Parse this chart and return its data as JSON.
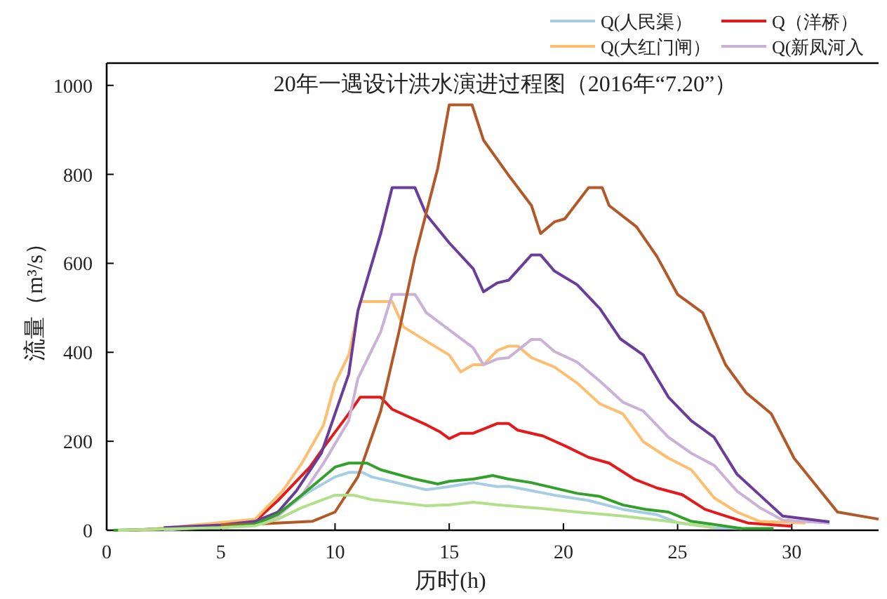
{
  "chart_data": {
    "type": "line",
    "title": "20年一遇设计洪水演进过程图（2016年“7.20”）",
    "xlabel": "历时(h)",
    "ylabel": "流量（m³/s）",
    "xlim": [
      0,
      33.8
    ],
    "ylim": [
      0,
      1050
    ],
    "xticks": [
      0,
      5,
      10,
      15,
      20,
      25,
      30
    ],
    "yticks": [
      0,
      200,
      400,
      600,
      800,
      1000
    ],
    "legend": "top right",
    "series": [
      {
        "name": "Q(人民渠）",
        "color": "#a6cee3",
        "x": [
          0.5,
          5,
          6.5,
          7.5,
          8.75,
          10,
          10.6,
          11.2,
          11.6,
          14.0,
          15.0,
          16.05,
          17.1,
          17.6,
          19.6,
          21.1,
          22.6,
          24.1,
          25.0,
          26.6,
          27.8
        ],
        "values": [
          0,
          8,
          14,
          35,
          83,
          120,
          130,
          130,
          120,
          91,
          98,
          107,
          98,
          99,
          79,
          67,
          47,
          35,
          17,
          6,
          4
        ]
      },
      {
        "name": "Q（洋桥）",
        "color": "#e31a1c",
        "x": [
          1,
          5,
          6.5,
          7.5,
          8.9,
          9.6,
          10.6,
          11.1,
          12.0,
          12.5,
          14.0,
          14.6,
          15.0,
          15.5,
          16.05,
          17.1,
          17.6,
          18.0,
          19.1,
          20.1,
          21.1,
          22.0,
          23.1,
          24.1,
          25.2,
          26.2,
          27.1,
          28.1,
          30.0
        ],
        "values": [
          0,
          10,
          20,
          67,
          142,
          193,
          262,
          299,
          299,
          272,
          237,
          221,
          206,
          218,
          218,
          240,
          240,
          225,
          212,
          189,
          164,
          151,
          115,
          95,
          80,
          47,
          32,
          16,
          9
        ]
      },
      {
        "name": "Q(大红门闸）",
        "color": "#fdbf6f",
        "x": [
          1.5,
          6.5,
          7.7,
          8.55,
          9.5,
          10.0,
          10.6,
          11.1,
          11.5,
          12.5,
          13.0,
          14.0,
          15.0,
          15.5,
          16.05,
          16.5,
          17.1,
          17.6,
          18.0,
          18.6,
          19.6,
          20.6,
          21.6,
          22.6,
          23.5,
          24.6,
          25.6,
          26.6,
          27.6,
          28.6,
          30.6
        ],
        "values": [
          0,
          25,
          88,
          151,
          237,
          331,
          394,
          514,
          514,
          514,
          457,
          425,
          394,
          356,
          372,
          372,
          404,
          414,
          414,
          388,
          367,
          331,
          284,
          262,
          199,
          162,
          136,
          73,
          41,
          20,
          16
        ]
      },
      {
        "name": "Q(新凤河入",
        "color": "#cab2d6",
        "x": [
          2.5,
          5,
          6.5,
          7.5,
          8.55,
          9.5,
          10.6,
          11.0,
          12.0,
          12.5,
          13.5,
          14.0,
          16.05,
          16.5,
          17.1,
          17.6,
          18.6,
          19.0,
          19.6,
          20.6,
          21.6,
          22.6,
          23.5,
          24.6,
          25.6,
          26.6,
          27.6,
          28.6,
          29.6,
          31.65
        ],
        "values": [
          0,
          10,
          15,
          32,
          79,
          151,
          246,
          341,
          446,
          530,
          530,
          489,
          410,
          372,
          385,
          388,
          429,
          429,
          402,
          378,
          335,
          288,
          268,
          209,
          173,
          146,
          88,
          51,
          23,
          16
        ]
      },
      {
        "color": "#6a3d9a",
        "x": [
          2.5,
          5,
          6.5,
          7.5,
          8.3,
          9.4,
          10.6,
          11.0,
          12.0,
          12.5,
          13.5,
          14.0,
          15.0,
          16.05,
          16.5,
          17.1,
          17.6,
          18.6,
          19.0,
          19.6,
          20.6,
          21.6,
          22.5,
          23.5,
          24.6,
          25.6,
          26.6,
          27.6,
          28.6,
          29.6,
          31.65
        ],
        "values": [
          6,
          12,
          20,
          41,
          88,
          173,
          351,
          493,
          667,
          770,
          770,
          709,
          646,
          588,
          536,
          556,
          562,
          619,
          619,
          583,
          552,
          498,
          430,
          394,
          299,
          246,
          209,
          126,
          79,
          32,
          19
        ]
      },
      {
        "color": "#b15928",
        "x": [
          5,
          7,
          9,
          10,
          11,
          12,
          12.8,
          13.5,
          14.5,
          15,
          16,
          16.5,
          17.6,
          18.6,
          19.0,
          19.6,
          20.06,
          21.1,
          21.7,
          22.0,
          23.2,
          24.1,
          25.0,
          26.1,
          27.1,
          28.0,
          29.1,
          30.1,
          32.0,
          33.8
        ],
        "values": [
          12,
          15,
          20,
          41,
          120,
          268,
          446,
          615,
          814,
          956,
          956,
          877,
          798,
          730,
          667,
          693,
          700,
          770,
          770,
          730,
          682,
          615,
          530,
          489,
          372,
          309,
          262,
          162,
          41,
          25
        ]
      },
      {
        "color": "#33a02c",
        "x": [
          0.3,
          5,
          6.5,
          7.5,
          8.75,
          10.0,
          10.6,
          11.4,
          12.0,
          13.5,
          14.5,
          15.0,
          16.05,
          16.9,
          17.6,
          18.6,
          20.6,
          21.6,
          22.6,
          23.6,
          24.6,
          25.6,
          26.6,
          27.8,
          29.2
        ],
        "values": [
          0,
          6,
          14,
          36,
          88,
          142,
          151,
          151,
          136,
          115,
          104,
          110,
          115,
          123,
          115,
          107,
          83,
          76,
          57,
          47,
          41,
          20,
          13,
          4,
          4
        ]
      },
      {
        "color": "#b2df8a",
        "x": [
          0.5,
          5,
          6.5,
          7.5,
          8.55,
          10.0,
          10.4,
          10.8,
          11.6,
          14.0,
          15.0,
          16.05,
          17.1,
          18.6,
          20.6,
          22.6,
          24.6,
          25.6,
          26.6
        ],
        "values": [
          0,
          6,
          10,
          25,
          51,
          79,
          79,
          79,
          69,
          55,
          57,
          63,
          57,
          51,
          41,
          32,
          20,
          13,
          6
        ]
      }
    ]
  }
}
